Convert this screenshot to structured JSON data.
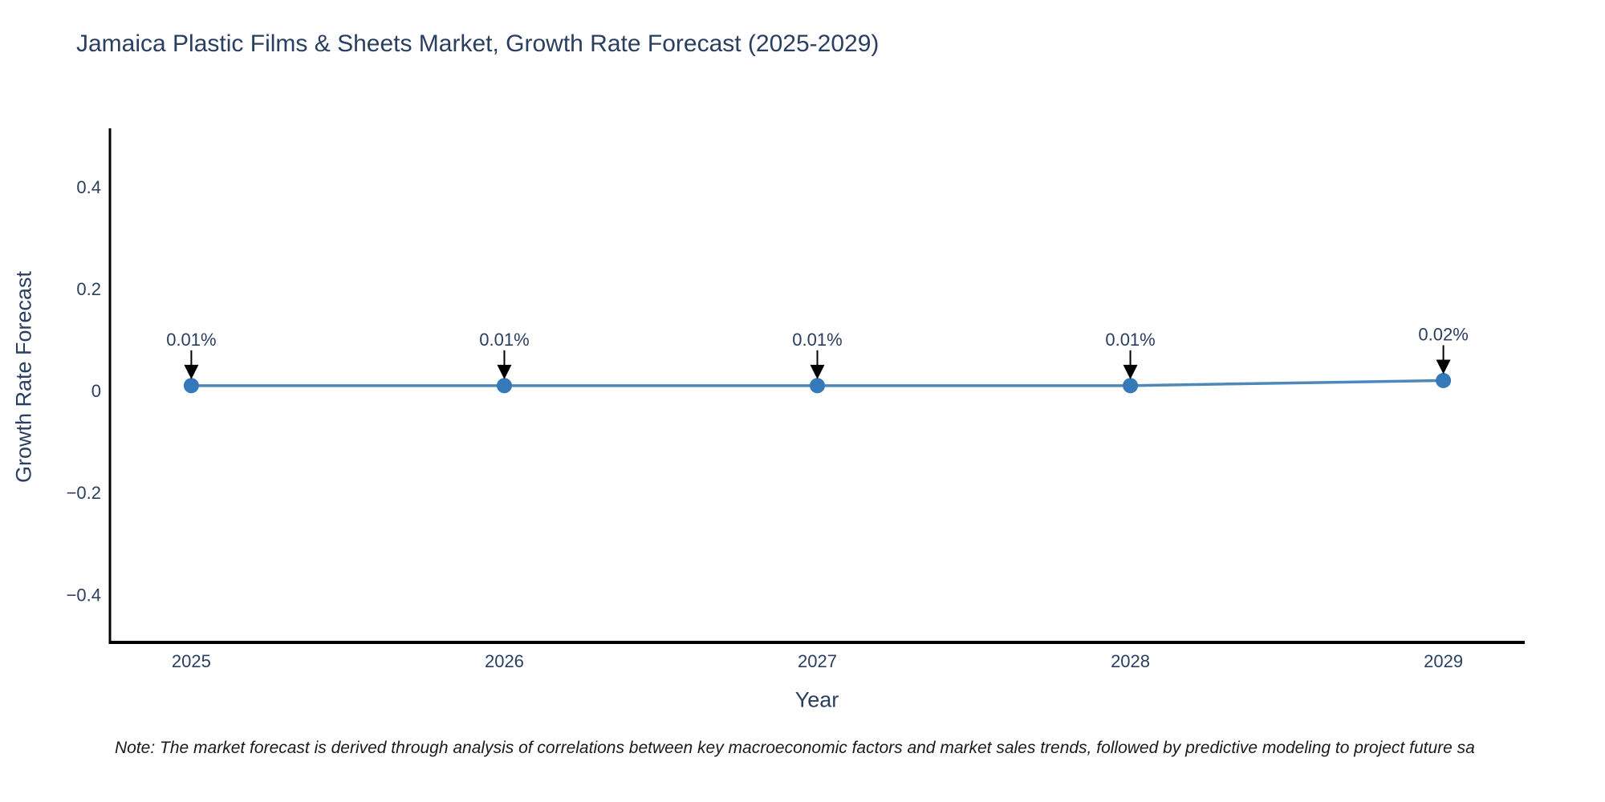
{
  "chart_data": {
    "type": "line",
    "title": "Jamaica Plastic Films & Sheets Market, Growth Rate Forecast (2025-2029)",
    "xlabel": "Year",
    "ylabel": "Growth Rate Forecast",
    "x": [
      2025,
      2026,
      2027,
      2028,
      2029
    ],
    "y": [
      0.01,
      0.01,
      0.01,
      0.01,
      0.02
    ],
    "point_labels": [
      "0.01%",
      "0.01%",
      "0.01%",
      "0.01%",
      "0.02%"
    ],
    "xtick_labels": [
      "2025",
      "2026",
      "2027",
      "2028",
      "2029"
    ],
    "ytick_values": [
      0.4,
      0.2,
      0,
      -0.2,
      -0.4
    ],
    "ytick_labels": [
      "0.4",
      "0.2",
      "0",
      "−0.2",
      "−0.4"
    ],
    "x_range": [
      2024.74,
      2029.26
    ],
    "y_range": [
      -0.494,
      0.515
    ],
    "grid": false,
    "legend": false,
    "colors": {
      "line": "#4d88b8",
      "marker": "#3579b8",
      "annotation_arrow": "#000000",
      "axis": "#000000",
      "text": "#2a3f5f"
    }
  },
  "note": {
    "text": "Note: The market forecast is derived through analysis of correlations between key macroeconomic factors and market sales trends, followed by predictive modeling to project future sa"
  }
}
